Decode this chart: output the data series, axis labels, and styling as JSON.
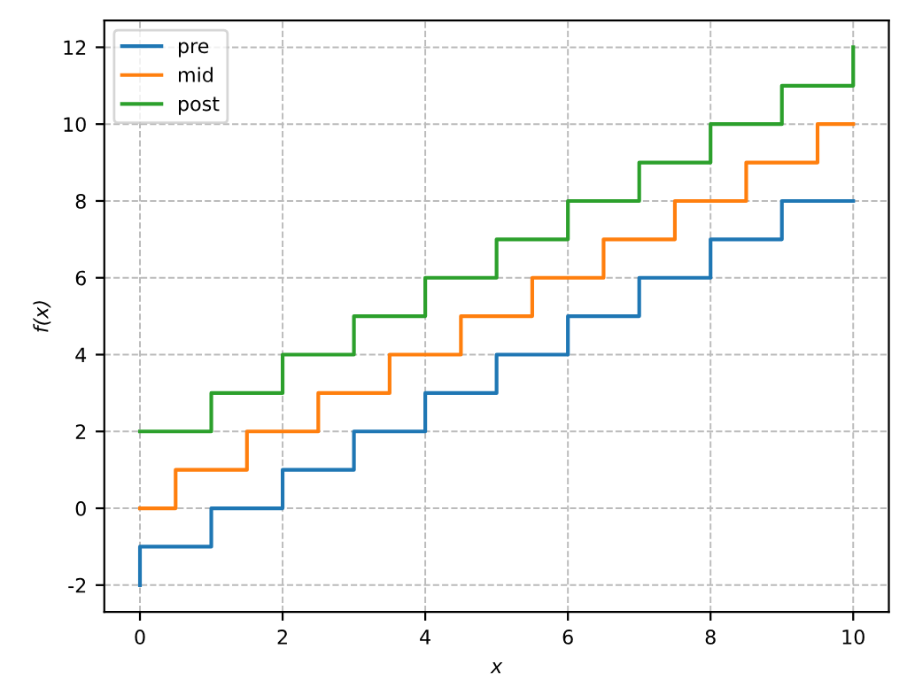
{
  "chart_data": {
    "type": "step",
    "xlabel": "x",
    "ylabel": "f(x)",
    "series": [
      {
        "name": "pre",
        "color": "#1f77b4",
        "x": [
          0,
          0,
          1,
          2,
          3,
          4,
          5,
          6,
          7,
          8,
          9,
          10
        ],
        "values": [
          -2,
          -1,
          0,
          1,
          2,
          3,
          4,
          5,
          6,
          7,
          8,
          8
        ]
      },
      {
        "name": "mid",
        "color": "#ff7f0e",
        "x": [
          0,
          0.5,
          1.5,
          2.5,
          3.5,
          4.5,
          5.5,
          6.5,
          7.5,
          8.5,
          9.5,
          10
        ],
        "values": [
          0,
          1,
          2,
          3,
          4,
          5,
          6,
          7,
          8,
          9,
          10,
          10
        ]
      },
      {
        "name": "post",
        "color": "#2ca02c",
        "x": [
          0,
          1,
          2,
          3,
          4,
          5,
          6,
          7,
          8,
          9,
          10
        ],
        "values": [
          2,
          3,
          4,
          5,
          6,
          7,
          8,
          9,
          10,
          11,
          12
        ]
      }
    ],
    "xlim": [
      -0.5,
      10.5
    ],
    "ylim": [
      -2.7,
      12.7
    ],
    "xticks": [
      0,
      2,
      4,
      6,
      8,
      10
    ],
    "yticks": [
      -2,
      0,
      2,
      4,
      6,
      8,
      10,
      12
    ],
    "grid": true,
    "legend": "top left"
  }
}
